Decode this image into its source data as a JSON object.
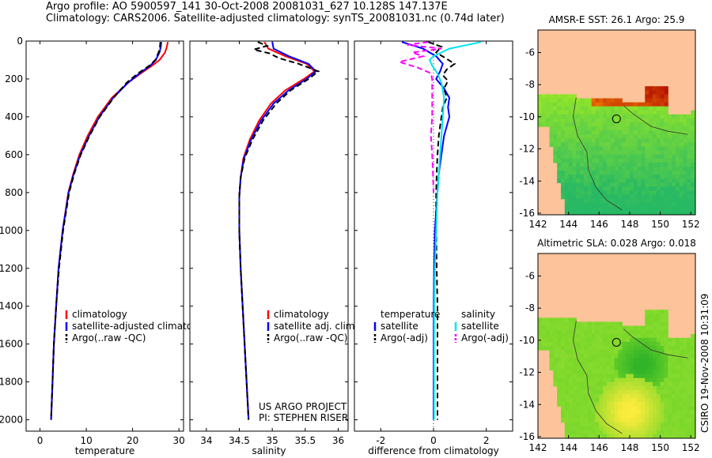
{
  "header": {
    "line1": "Argo profile: AO 5900597_141 30-Oct-2008 20081031_627 10.128S 147.137E",
    "line2": "Climatology: CARS2006. Satellite-adjusted climatology: synTS_20081031.nc (0.74d later)"
  },
  "credit": "CSIRO 19-Nov-2008 10:31:09",
  "colors": {
    "red": "#ff0000",
    "blue": "#0000ff",
    "black": "#000000",
    "cyan": "#00e5ee",
    "magenta": "#ff00ff",
    "land": "#fdc39a"
  },
  "chart_data": [
    {
      "type": "line",
      "name": "temperature",
      "xlabel": "temperature",
      "xlim": [
        -3,
        31
      ],
      "ylim": [
        0,
        2060
      ],
      "xticks": [
        "0",
        "10",
        "20",
        "30"
      ],
      "xtick_values": [
        0,
        10,
        20,
        30
      ],
      "yticks": [
        "0",
        "200",
        "400",
        "600",
        "800",
        "1000",
        "1200",
        "1400",
        "1600",
        "1800",
        "2000"
      ],
      "ytick_values": [
        0,
        200,
        400,
        600,
        800,
        1000,
        1200,
        1400,
        1600,
        1800,
        2000
      ],
      "legend": [
        "climatology",
        "satellite-adjusted climatology",
        "Argo(..raw -QC)"
      ],
      "series": [
        {
          "name": "climatology",
          "color": "red",
          "dash": "none",
          "depth": [
            5,
            30,
            60,
            100,
            130,
            170,
            220,
            300,
            400,
            500,
            600,
            700,
            800,
            1000,
            1200,
            1400,
            1600,
            1800,
            2000
          ],
          "values": [
            27.6,
            27.4,
            27.0,
            25.8,
            24.2,
            21.8,
            19.0,
            15.5,
            12.5,
            10.3,
            8.5,
            7.2,
            6.1,
            4.9,
            4.0,
            3.5,
            3.0,
            2.7,
            2.4
          ]
        },
        {
          "name": "satellite-adjusted climatology",
          "color": "blue",
          "dash": "none",
          "depth": [
            5,
            30,
            60,
            100,
            130,
            170,
            220,
            300,
            400,
            500,
            600,
            700,
            800,
            1000,
            1200,
            1400,
            1600,
            1800,
            2000
          ],
          "values": [
            26.2,
            26.1,
            25.8,
            25.0,
            23.8,
            21.5,
            19.0,
            15.8,
            12.8,
            10.6,
            8.7,
            7.3,
            6.2,
            4.9,
            4.0,
            3.5,
            3.0,
            2.7,
            2.4
          ]
        },
        {
          "name": "Argo(..raw -QC)",
          "color": "black",
          "dash": "7,4",
          "depth": [
            5,
            30,
            60,
            100,
            130,
            170,
            220,
            300,
            400,
            500,
            600,
            700,
            800,
            1000,
            1200,
            1400,
            1600,
            1800,
            2000
          ],
          "values": [
            26.0,
            25.9,
            25.6,
            24.9,
            23.6,
            21.2,
            18.7,
            15.9,
            12.9,
            10.7,
            8.8,
            7.4,
            6.3,
            5.0,
            4.1,
            3.5,
            3.0,
            2.7,
            2.4
          ]
        }
      ]
    },
    {
      "type": "line",
      "name": "salinity",
      "xlabel": "salinity",
      "xlim": [
        33.75,
        36.15
      ],
      "ylim": [
        0,
        2060
      ],
      "xticks": [
        "34",
        "34.5",
        "35",
        "35.5",
        "36"
      ],
      "xtick_values": [
        34,
        34.5,
        35,
        35.5,
        36
      ],
      "legend": [
        "climatology",
        "satellite adj. clim.",
        "Argo(..raw -QC)"
      ],
      "annotation": [
        "US ARGO PROJECT",
        "PI: STEPHEN RISER"
      ],
      "series": [
        {
          "name": "climatology",
          "color": "red",
          "dash": "none",
          "depth": [
            5,
            40,
            80,
            120,
            160,
            200,
            260,
            330,
            420,
            520,
            620,
            720,
            820,
            1000,
            1200,
            1400,
            1600,
            1800,
            2000
          ],
          "values": [
            34.88,
            34.94,
            35.2,
            35.52,
            35.64,
            35.48,
            35.2,
            34.98,
            34.8,
            34.66,
            34.56,
            34.52,
            34.5,
            34.5,
            34.52,
            34.55,
            34.58,
            34.61,
            34.64
          ]
        },
        {
          "name": "satellite adj. clim.",
          "color": "blue",
          "dash": "none",
          "depth": [
            5,
            40,
            80,
            120,
            160,
            200,
            260,
            330,
            420,
            520,
            620,
            720,
            820,
            1000,
            1200,
            1400,
            1600,
            1800,
            2000
          ],
          "values": [
            35.0,
            35.02,
            35.25,
            35.55,
            35.66,
            35.52,
            35.25,
            35.02,
            34.83,
            34.68,
            34.57,
            34.52,
            34.5,
            34.5,
            34.52,
            34.55,
            34.58,
            34.61,
            34.64
          ]
        },
        {
          "name": "Argo(..raw -QC)",
          "color": "black",
          "dash": "7,4",
          "depth": [
            5,
            25,
            45,
            65,
            90,
            120,
            160,
            200,
            260,
            330,
            420,
            520,
            620,
            720,
            820,
            1000,
            1200,
            1400,
            1600,
            1800,
            2000
          ],
          "values": [
            34.78,
            34.92,
            34.72,
            34.96,
            35.1,
            35.4,
            35.7,
            35.55,
            35.28,
            35.06,
            34.86,
            34.7,
            34.58,
            34.52,
            34.5,
            34.5,
            34.52,
            34.55,
            34.58,
            34.61,
            34.64
          ]
        }
      ]
    },
    {
      "type": "line",
      "name": "difference",
      "xlabel": "difference from climatology",
      "xlim": [
        -3,
        3
      ],
      "ylim": [
        0,
        2060
      ],
      "xticks": [
        "-2",
        "0",
        "2"
      ],
      "xtick_values": [
        -2,
        0,
        2
      ],
      "legend_left": [
        "temperature",
        "satellite",
        "Argo(-adj)"
      ],
      "legend_right": [
        "salinity",
        "satellite",
        "Argo(-adj)"
      ],
      "series": [
        {
          "name": "temperature satellite",
          "color": "blue",
          "dash": "none",
          "depth": [
            5,
            40,
            80,
            120,
            160,
            200,
            250,
            300,
            350,
            400,
            450,
            500,
            600,
            700,
            800,
            900,
            1000,
            1200,
            1400,
            1600,
            1800,
            2000
          ],
          "values": [
            -1.2,
            -0.4,
            0.1,
            0.35,
            0.25,
            0.1,
            0.4,
            0.6,
            0.55,
            0.6,
            0.5,
            0.4,
            0.3,
            0.2,
            0.15,
            0.1,
            0.05,
            0.02,
            0.01,
            0,
            0,
            0
          ]
        },
        {
          "name": "temperature Argo(-adj)",
          "color": "black",
          "dash": "7,4",
          "depth": [
            5,
            30,
            60,
            90,
            120,
            150,
            180,
            210,
            250,
            300,
            350,
            400,
            450,
            500,
            600,
            700,
            800,
            1000,
            1200,
            1400,
            1600,
            1800,
            2000
          ],
          "values": [
            -0.2,
            0.3,
            0.1,
            0.45,
            0.8,
            0.5,
            0.35,
            0.55,
            0.4,
            0.5,
            0.35,
            0.3,
            0.25,
            0.2,
            0.15,
            0.12,
            0.1,
            0.1,
            0.12,
            0.15,
            0.15,
            0.15,
            0.15
          ]
        },
        {
          "name": "salinity satellite",
          "color": "cyan",
          "dash": "none",
          "depth": [
            5,
            20,
            40,
            60,
            80,
            100,
            130,
            170,
            220,
            300,
            400,
            500,
            600,
            700,
            800,
            1000,
            1200,
            1400,
            1600,
            1800,
            2000
          ],
          "values": [
            1.8,
            1.3,
            0.6,
            0.3,
            0.0,
            -0.15,
            -0.05,
            0.15,
            0.3,
            0.4,
            0.35,
            0.3,
            0.25,
            0.2,
            0.15,
            0.1,
            0.05,
            0.03,
            0.02,
            0.02,
            0.02
          ]
        },
        {
          "name": "salinity Argo(-adj)",
          "color": "magenta",
          "dash": "7,4",
          "depth": [
            5,
            20,
            40,
            60,
            80,
            110,
            140,
            170,
            200,
            250,
            300,
            400,
            500,
            600,
            700,
            800
          ],
          "values": [
            -0.2,
            -1.0,
            0.3,
            -0.8,
            -0.4,
            -1.3,
            -0.6,
            -0.1,
            -0.05,
            -0.05,
            -0.05,
            -0.05,
            -0.1,
            -0.05,
            -0.02,
            0
          ]
        }
      ]
    },
    {
      "type": "heatmap",
      "name": "sst-map",
      "title": "AMSR-E SST: 26.1  Argo: 25.9",
      "xlim": [
        142,
        152.3
      ],
      "ylim": [
        -16.1,
        -4.6
      ],
      "xticks": [
        "142",
        "144",
        "146",
        "148",
        "150",
        "152"
      ],
      "xtick_values": [
        142,
        144,
        146,
        148,
        150,
        152
      ],
      "yticks": [
        "-6",
        "-8",
        "-10",
        "-12",
        "-14",
        "-16"
      ],
      "ytick_values": [
        -6,
        -8,
        -10,
        -12,
        -14,
        -16
      ],
      "marker": {
        "lon": 147.137,
        "lat": -10.128
      }
    },
    {
      "type": "heatmap",
      "name": "sla-map",
      "title": "Altimetric SLA: 0.028  Argo: 0.018",
      "xlim": [
        142,
        152.3
      ],
      "ylim": [
        -16.1,
        -4.6
      ],
      "xticks": [
        "142",
        "144",
        "146",
        "148",
        "150",
        "152"
      ],
      "xtick_values": [
        142,
        144,
        146,
        148,
        150,
        152
      ],
      "yticks": [
        "-6",
        "-8",
        "-10",
        "-12",
        "-14",
        "-16"
      ],
      "ytick_values": [
        -6,
        -8,
        -10,
        -12,
        -14,
        -16
      ],
      "marker": {
        "lon": 147.137,
        "lat": -10.128
      }
    }
  ]
}
